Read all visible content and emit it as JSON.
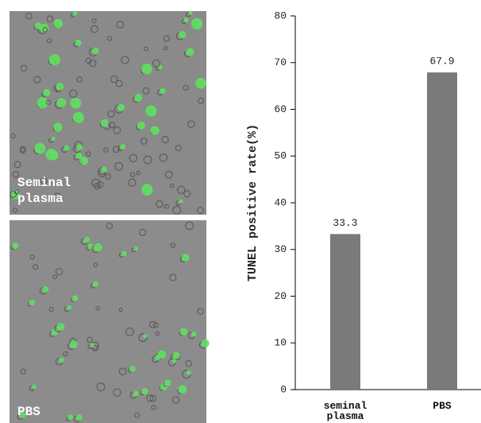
{
  "images": [
    {
      "label": "Seminal plasma"
    },
    {
      "label": "PBS"
    }
  ],
  "chart_data": {
    "type": "bar",
    "y_label": "TUNEL positive rate(%)",
    "categories": [
      "seminal plasma",
      "PBS"
    ],
    "values": [
      33.3,
      67.9
    ],
    "color": "#7a7a7a",
    "ylim": [
      0,
      80
    ],
    "yticks": [
      0,
      10,
      20,
      30,
      40,
      50,
      60,
      70,
      80
    ]
  }
}
